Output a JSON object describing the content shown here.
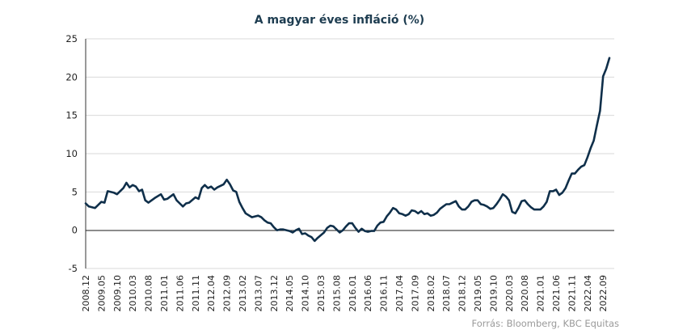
{
  "chart_data": {
    "type": "line",
    "title": "A magyar éves infláció (%)",
    "xlabel": "",
    "ylabel": "",
    "ylim": [
      -5,
      25
    ],
    "yticks": [
      -5,
      0,
      5,
      10,
      15,
      20,
      25
    ],
    "grid": "horizontal",
    "legend": "none",
    "line_color": "#0f2f4a",
    "x_tick_labels": [
      "2008.12",
      "2009.05",
      "2009.10",
      "2010.03",
      "2010.08",
      "2011.01",
      "2011.06",
      "2011.11",
      "2012.04",
      "2012.09",
      "2013.02",
      "2013.07",
      "2013.12",
      "2014.05",
      "2014.10",
      "2015.03",
      "2015.08",
      "2016.01",
      "2016.06",
      "2016.11",
      "2017.04",
      "2017.09",
      "2018.02",
      "2018.07",
      "2018.12",
      "2019.05",
      "2019.10",
      "2020.03",
      "2020.08",
      "2021.01",
      "2021.06",
      "2021.11",
      "2022.04",
      "2022.09"
    ],
    "points": [
      [
        "2008.12",
        3.5
      ],
      [
        "2009.01",
        3.1
      ],
      [
        "2009.03",
        2.9
      ],
      [
        "2009.05",
        3.7
      ],
      [
        "2009.06",
        3.6
      ],
      [
        "2009.07",
        5.1
      ],
      [
        "2009.09",
        4.9
      ],
      [
        "2009.10",
        4.7
      ],
      [
        "2009.12",
        5.5
      ],
      [
        "2010.01",
        6.2
      ],
      [
        "2010.02",
        5.6
      ],
      [
        "2010.03",
        5.9
      ],
      [
        "2010.04",
        5.7
      ],
      [
        "2010.05",
        5.1
      ],
      [
        "2010.06",
        5.3
      ],
      [
        "2010.07",
        3.9
      ],
      [
        "2010.08",
        3.6
      ],
      [
        "2010.10",
        4.2
      ],
      [
        "2010.12",
        4.7
      ],
      [
        "2011.01",
        4.0
      ],
      [
        "2011.02",
        4.1
      ],
      [
        "2011.04",
        4.7
      ],
      [
        "2011.05",
        3.9
      ],
      [
        "2011.06",
        3.5
      ],
      [
        "2011.07",
        3.1
      ],
      [
        "2011.08",
        3.5
      ],
      [
        "2011.09",
        3.6
      ],
      [
        "2011.11",
        4.3
      ],
      [
        "2011.12",
        4.1
      ],
      [
        "2012.01",
        5.5
      ],
      [
        "2012.02",
        5.9
      ],
      [
        "2012.03",
        5.5
      ],
      [
        "2012.04",
        5.7
      ],
      [
        "2012.05",
        5.3
      ],
      [
        "2012.06",
        5.6
      ],
      [
        "2012.08",
        6.0
      ],
      [
        "2012.09",
        6.6
      ],
      [
        "2012.10",
        6.0
      ],
      [
        "2012.11",
        5.2
      ],
      [
        "2012.12",
        5.0
      ],
      [
        "2013.01",
        3.7
      ],
      [
        "2013.02",
        2.9
      ],
      [
        "2013.03",
        2.2
      ],
      [
        "2013.05",
        1.7
      ],
      [
        "2013.06",
        1.8
      ],
      [
        "2013.07",
        1.9
      ],
      [
        "2013.08",
        1.7
      ],
      [
        "2013.09",
        1.3
      ],
      [
        "2013.10",
        1.0
      ],
      [
        "2013.11",
        0.9
      ],
      [
        "2013.12",
        0.4
      ],
      [
        "2014.01",
        0.0
      ],
      [
        "2014.02",
        0.1
      ],
      [
        "2014.03",
        0.1
      ],
      [
        "2014.05",
        -0.1
      ],
      [
        "2014.06",
        -0.3
      ],
      [
        "2014.07",
        0.0
      ],
      [
        "2014.08",
        0.2
      ],
      [
        "2014.09",
        -0.5
      ],
      [
        "2014.10",
        -0.4
      ],
      [
        "2014.11",
        -0.7
      ],
      [
        "2014.12",
        -0.9
      ],
      [
        "2015.01",
        -1.4
      ],
      [
        "2015.02",
        -1.0
      ],
      [
        "2015.04",
        -0.3
      ],
      [
        "2015.05",
        0.3
      ],
      [
        "2015.06",
        0.6
      ],
      [
        "2015.07",
        0.5
      ],
      [
        "2015.08",
        0.1
      ],
      [
        "2015.09",
        -0.3
      ],
      [
        "2015.10",
        0.0
      ],
      [
        "2015.11",
        0.5
      ],
      [
        "2015.12",
        0.9
      ],
      [
        "2016.01",
        0.9
      ],
      [
        "2016.02",
        0.3
      ],
      [
        "2016.03",
        -0.2
      ],
      [
        "2016.04",
        0.2
      ],
      [
        "2016.05",
        -0.1
      ],
      [
        "2016.06",
        -0.2
      ],
      [
        "2016.07",
        -0.1
      ],
      [
        "2016.08",
        -0.1
      ],
      [
        "2016.09",
        0.6
      ],
      [
        "2016.10",
        1.0
      ],
      [
        "2016.11",
        1.1
      ],
      [
        "2016.12",
        1.8
      ],
      [
        "2017.01",
        2.3
      ],
      [
        "2017.02",
        2.9
      ],
      [
        "2017.03",
        2.7
      ],
      [
        "2017.04",
        2.2
      ],
      [
        "2017.05",
        2.1
      ],
      [
        "2017.06",
        1.9
      ],
      [
        "2017.07",
        2.1
      ],
      [
        "2017.08",
        2.6
      ],
      [
        "2017.09",
        2.5
      ],
      [
        "2017.10",
        2.2
      ],
      [
        "2017.11",
        2.5
      ],
      [
        "2017.12",
        2.1
      ],
      [
        "2018.01",
        2.2
      ],
      [
        "2018.02",
        1.9
      ],
      [
        "2018.03",
        2.0
      ],
      [
        "2018.04",
        2.3
      ],
      [
        "2018.05",
        2.8
      ],
      [
        "2018.06",
        3.1
      ],
      [
        "2018.07",
        3.4
      ],
      [
        "2018.08",
        3.4
      ],
      [
        "2018.09",
        3.6
      ],
      [
        "2018.10",
        3.8
      ],
      [
        "2018.11",
        3.1
      ],
      [
        "2018.12",
        2.7
      ],
      [
        "2019.01",
        2.7
      ],
      [
        "2019.02",
        3.1
      ],
      [
        "2019.03",
        3.7
      ],
      [
        "2019.04",
        3.9
      ],
      [
        "2019.05",
        3.9
      ],
      [
        "2019.06",
        3.4
      ],
      [
        "2019.07",
        3.3
      ],
      [
        "2019.08",
        3.1
      ],
      [
        "2019.09",
        2.8
      ],
      [
        "2019.10",
        2.9
      ],
      [
        "2019.11",
        3.4
      ],
      [
        "2019.12",
        4.0
      ],
      [
        "2020.01",
        4.7
      ],
      [
        "2020.02",
        4.4
      ],
      [
        "2020.03",
        3.9
      ],
      [
        "2020.04",
        2.4
      ],
      [
        "2020.05",
        2.2
      ],
      [
        "2020.06",
        2.9
      ],
      [
        "2020.07",
        3.8
      ],
      [
        "2020.08",
        3.9
      ],
      [
        "2020.09",
        3.4
      ],
      [
        "2020.10",
        3.0
      ],
      [
        "2020.11",
        2.7
      ],
      [
        "2020.12",
        2.7
      ],
      [
        "2021.01",
        2.7
      ],
      [
        "2021.02",
        3.1
      ],
      [
        "2021.03",
        3.7
      ],
      [
        "2021.04",
        5.1
      ],
      [
        "2021.05",
        5.1
      ],
      [
        "2021.06",
        5.3
      ],
      [
        "2021.07",
        4.6
      ],
      [
        "2021.08",
        4.9
      ],
      [
        "2021.09",
        5.5
      ],
      [
        "2021.10",
        6.5
      ],
      [
        "2021.11",
        7.4
      ],
      [
        "2021.12",
        7.4
      ],
      [
        "2022.01",
        7.9
      ],
      [
        "2022.02",
        8.3
      ],
      [
        "2022.03",
        8.5
      ],
      [
        "2022.04",
        9.5
      ],
      [
        "2022.05",
        10.7
      ],
      [
        "2022.06",
        11.7
      ],
      [
        "2022.07",
        13.7
      ],
      [
        "2022.08",
        15.6
      ],
      [
        "2022.09",
        20.1
      ],
      [
        "2022.10",
        21.1
      ],
      [
        "2022.11",
        22.5
      ]
    ],
    "source": "Forrás: Bloomberg, KBC Equitas"
  }
}
